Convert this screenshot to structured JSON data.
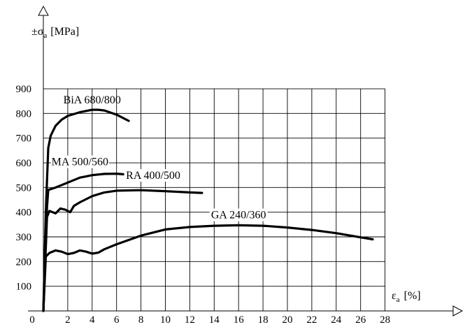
{
  "chart_data": {
    "type": "line",
    "ylabel": "±σa [MPa]",
    "ylabel_main": "±σ",
    "ylabel_sub": "a",
    "ylabel_unit": "[MPa]",
    "xlabel": "εa [%]",
    "xlabel_main": "ε",
    "xlabel_sub": "a",
    "xlabel_unit": "[%]",
    "xlim": [
      0,
      28
    ],
    "ylim": [
      0,
      900
    ],
    "x_ticks": [
      0,
      2,
      4,
      6,
      8,
      10,
      12,
      14,
      16,
      18,
      20,
      22,
      24,
      26,
      28
    ],
    "y_ticks": [
      100,
      200,
      300,
      400,
      500,
      600,
      700,
      800,
      900
    ],
    "grid": true,
    "series": [
      {
        "name": "BiA 680/800",
        "points": [
          [
            0,
            0
          ],
          [
            0.2,
            400
          ],
          [
            0.4,
            660
          ],
          [
            0.6,
            710
          ],
          [
            1,
            750
          ],
          [
            1.5,
            775
          ],
          [
            2,
            790
          ],
          [
            3,
            805
          ],
          [
            4,
            815
          ],
          [
            4.5,
            815
          ],
          [
            5,
            812
          ],
          [
            6,
            795
          ],
          [
            7,
            770
          ]
        ]
      },
      {
        "name": "MA 500/560",
        "points": [
          [
            0,
            0
          ],
          [
            0.3,
            420
          ],
          [
            0.4,
            490
          ],
          [
            1,
            500
          ],
          [
            2,
            520
          ],
          [
            3,
            540
          ],
          [
            4,
            550
          ],
          [
            5,
            555
          ],
          [
            6,
            556
          ],
          [
            7,
            552
          ],
          [
            8,
            545
          ]
        ]
      },
      {
        "name": "RA 400/500",
        "points": [
          [
            0,
            0
          ],
          [
            0.3,
            380
          ],
          [
            0.5,
            405
          ],
          [
            1,
            395
          ],
          [
            1.4,
            415
          ],
          [
            1.8,
            410
          ],
          [
            2.2,
            400
          ],
          [
            2.5,
            425
          ],
          [
            3,
            440
          ],
          [
            4,
            465
          ],
          [
            5,
            480
          ],
          [
            6,
            487
          ],
          [
            8,
            489
          ],
          [
            10,
            485
          ],
          [
            12,
            480
          ],
          [
            13,
            478
          ]
        ]
      },
      {
        "name": "GA 240/360",
        "points": [
          [
            0,
            0
          ],
          [
            0.2,
            220
          ],
          [
            0.5,
            235
          ],
          [
            1,
            245
          ],
          [
            1.5,
            240
          ],
          [
            2,
            230
          ],
          [
            2.5,
            235
          ],
          [
            3,
            245
          ],
          [
            3.5,
            240
          ],
          [
            4,
            232
          ],
          [
            4.5,
            236
          ],
          [
            5,
            250
          ],
          [
            6,
            270
          ],
          [
            8,
            305
          ],
          [
            10,
            330
          ],
          [
            12,
            340
          ],
          [
            14,
            345
          ],
          [
            16,
            347
          ],
          [
            18,
            345
          ],
          [
            20,
            338
          ],
          [
            22,
            328
          ],
          [
            24,
            315
          ],
          [
            26,
            298
          ],
          [
            27,
            290
          ]
        ]
      }
    ]
  }
}
